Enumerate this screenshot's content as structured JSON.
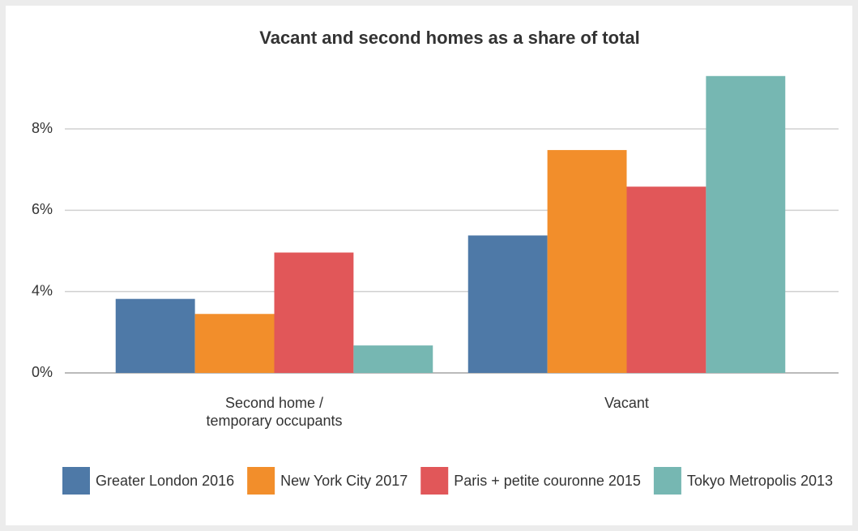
{
  "chart_data": {
    "type": "bar",
    "title": "Vacant and second homes as a share of total",
    "categories": [
      "Second home /\ntemporary occupants",
      "Vacant"
    ],
    "series": [
      {
        "name": "Greater London 2016",
        "color": "#4e79a7",
        "values": [
          3.64,
          5.38
        ]
      },
      {
        "name": "New York City 2017",
        "color": "#f28e2b",
        "values": [
          2.9,
          7.48
        ]
      },
      {
        "name": "Paris + petite couronne 2015",
        "color": "#e15759",
        "values": [
          4.96,
          6.58
        ]
      },
      {
        "name": "Tokyo Metropolis 2013",
        "color": "#76b7b2",
        "values": [
          1.35,
          9.3
        ]
      }
    ],
    "ylim": [
      0,
      9.4
    ],
    "yticks": [
      {
        "value": 0,
        "label": "0%"
      },
      {
        "value": 4,
        "label": "4%"
      },
      {
        "value": 6,
        "label": "6%"
      },
      {
        "value": 8,
        "label": "8%"
      }
    ],
    "grid": true,
    "legend": "bottom"
  }
}
